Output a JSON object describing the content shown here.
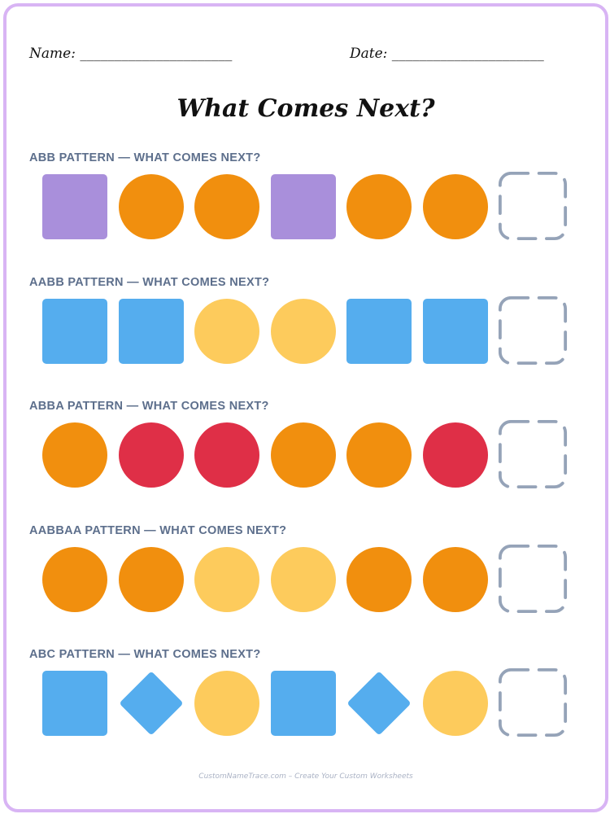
{
  "header": {
    "name_label": "Name: ______________________",
    "date_label": "Date: ______________________"
  },
  "title": "What Comes Next?",
  "colors": {
    "purple": "#a98fdb",
    "orange": "#f18f0e",
    "yellow": "#fdcb5c",
    "blue": "#55adee",
    "red": "#df2f47",
    "answer_box": "#95a3b8",
    "page_border": "#d8b4f4"
  },
  "sections": [
    {
      "label": "ABB PATTERN — WHAT COMES NEXT?",
      "shapes": [
        {
          "shape": "square",
          "color": "purple"
        },
        {
          "shape": "circle",
          "color": "orange"
        },
        {
          "shape": "circle",
          "color": "orange"
        },
        {
          "shape": "square",
          "color": "purple"
        },
        {
          "shape": "circle",
          "color": "orange"
        },
        {
          "shape": "circle",
          "color": "orange"
        }
      ]
    },
    {
      "label": "AABB PATTERN — WHAT COMES NEXT?",
      "shapes": [
        {
          "shape": "square",
          "color": "blue"
        },
        {
          "shape": "square",
          "color": "blue"
        },
        {
          "shape": "circle",
          "color": "yellow"
        },
        {
          "shape": "circle",
          "color": "yellow"
        },
        {
          "shape": "square",
          "color": "blue"
        },
        {
          "shape": "square",
          "color": "blue"
        }
      ]
    },
    {
      "label": "ABBA PATTERN — WHAT COMES NEXT?",
      "shapes": [
        {
          "shape": "circle",
          "color": "orange"
        },
        {
          "shape": "circle",
          "color": "red"
        },
        {
          "shape": "circle",
          "color": "red"
        },
        {
          "shape": "circle",
          "color": "orange"
        },
        {
          "shape": "circle",
          "color": "orange"
        },
        {
          "shape": "circle",
          "color": "red"
        }
      ]
    },
    {
      "label": "AABBAA PATTERN — WHAT COMES NEXT?",
      "shapes": [
        {
          "shape": "circle",
          "color": "orange"
        },
        {
          "shape": "circle",
          "color": "orange"
        },
        {
          "shape": "circle",
          "color": "yellow"
        },
        {
          "shape": "circle",
          "color": "yellow"
        },
        {
          "shape": "circle",
          "color": "orange"
        },
        {
          "shape": "circle",
          "color": "orange"
        }
      ]
    },
    {
      "label": "ABC PATTERN — WHAT COMES NEXT?",
      "shapes": [
        {
          "shape": "square",
          "color": "blue"
        },
        {
          "shape": "diamond",
          "color": "blue"
        },
        {
          "shape": "circle",
          "color": "yellow"
        },
        {
          "shape": "square",
          "color": "blue"
        },
        {
          "shape": "diamond",
          "color": "blue"
        },
        {
          "shape": "circle",
          "color": "yellow"
        }
      ]
    }
  ],
  "footer": "CustomNameTrace.com – Create Your Custom Worksheets"
}
